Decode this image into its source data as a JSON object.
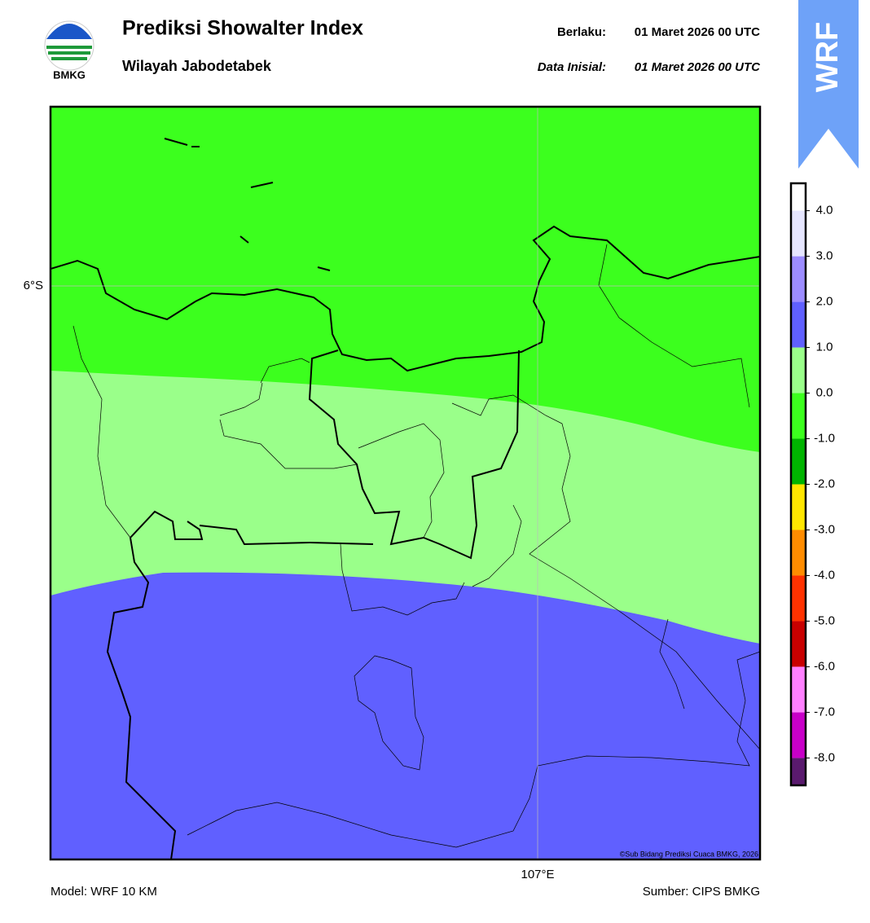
{
  "header": {
    "title": "Prediksi Showalter Index",
    "subtitle": "Wilayah Jabodetabek",
    "valid_label": "Berlaku:",
    "valid_time": "01 Maret 2026 00 UTC",
    "init_label": "Data Inisial:",
    "init_time": "01 Maret 2026 00 UTC",
    "logo_text": "BMKG",
    "badge": "WRF"
  },
  "map": {
    "lat_label": "6°S",
    "lon_label": "107°E",
    "credit": "©Sub Bidang Prediksi Cuaca BMKG, 2026"
  },
  "colorbar": {
    "ylim": [
      -8.6,
      4.6
    ],
    "yticks": [
      {
        "value": -8,
        "label": "-8.0"
      },
      {
        "value": -7,
        "label": "-7.0"
      },
      {
        "value": -6,
        "label": "-6.0"
      },
      {
        "value": -5,
        "label": "-5.0"
      },
      {
        "value": -4,
        "label": "-4.0"
      },
      {
        "value": -3,
        "label": "-3.0"
      },
      {
        "value": -2,
        "label": "-2.0"
      },
      {
        "value": -1,
        "label": "-1.0"
      },
      {
        "value": 0,
        "label": "0.0"
      },
      {
        "value": 1,
        "label": "1.0"
      },
      {
        "value": 2,
        "label": "2.0"
      },
      {
        "value": 3,
        "label": "3.0"
      },
      {
        "value": 4,
        "label": "4.0"
      }
    ],
    "colors": [
      "#5a1a6e",
      "#c800c8",
      "#ff80ff",
      "#c80000",
      "#ff3200",
      "#ff8c00",
      "#ffe600",
      "#00b400",
      "#3cff1e",
      "#9aff8a",
      "#6060ff",
      "#9c8cff",
      "#e6e6ff",
      "#ffffff"
    ]
  },
  "footer": {
    "model": "Model: WRF 10 KM",
    "source": "Sumber: CIPS BMKG"
  }
}
